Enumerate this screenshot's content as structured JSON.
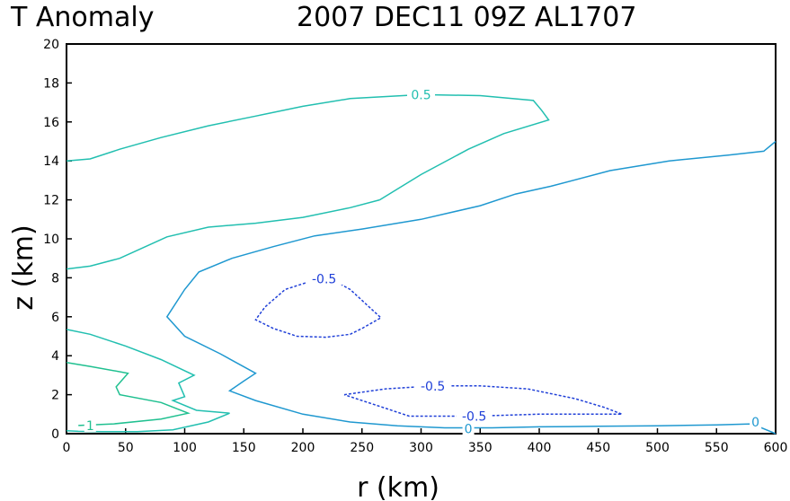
{
  "chart_data": {
    "type": "contour",
    "title_left": "T Anomaly",
    "title_right": "2007 DEC11 09Z  AL1707",
    "xlabel": "r (km)",
    "ylabel": "z (km)",
    "xlim": [
      0,
      600
    ],
    "ylim": [
      0,
      20
    ],
    "x_ticks": [
      "0",
      "50",
      "100",
      "150",
      "200",
      "250",
      "300",
      "350",
      "400",
      "450",
      "500",
      "550",
      "600"
    ],
    "y_ticks": [
      "0",
      "2",
      "4",
      "6",
      "8",
      "10",
      "12",
      "14",
      "16",
      "18",
      "20"
    ],
    "grid": false,
    "legend": "none",
    "colors": {
      "pos_05": "#22bfb0",
      "zero": "#1f98d0",
      "neg_05": "#2040d8",
      "pos_1": "#20c090"
    },
    "contours": [
      {
        "level": "0.5",
        "color_key": "pos_05",
        "dashed": false,
        "points": [
          [
            0,
            14
          ],
          [
            20,
            14.1
          ],
          [
            45,
            14.6
          ],
          [
            80,
            15.2
          ],
          [
            120,
            15.8
          ],
          [
            160,
            16.3
          ],
          [
            200,
            16.8
          ],
          [
            240,
            17.2
          ],
          [
            300,
            17.4
          ],
          [
            350,
            17.35
          ],
          [
            395,
            17.1
          ],
          [
            402,
            16.6
          ],
          [
            408,
            16.1
          ],
          [
            370,
            15.4
          ],
          [
            340,
            14.6
          ],
          [
            300,
            13.3
          ],
          [
            265,
            12
          ]
        ],
        "label": {
          "text": "0.5",
          "x": 300,
          "y": 17.4
        }
      },
      {
        "level": "0.5",
        "color_key": "pos_05",
        "dashed": false,
        "points": [
          [
            265,
            12
          ],
          [
            240,
            11.6
          ],
          [
            200,
            11.1
          ],
          [
            160,
            10.8
          ],
          [
            120,
            10.6
          ],
          [
            85,
            10.1
          ],
          [
            45,
            9
          ],
          [
            20,
            8.6
          ],
          [
            0,
            8.45
          ]
        ],
        "label": null
      },
      {
        "level": "0",
        "color_key": "zero",
        "dashed": false,
        "points": [
          [
            600,
            15
          ],
          [
            590,
            14.5
          ],
          [
            560,
            14.3
          ],
          [
            510,
            14
          ],
          [
            460,
            13.5
          ],
          [
            410,
            12.7
          ],
          [
            380,
            12.3
          ],
          [
            350,
            11.7
          ],
          [
            300,
            11
          ],
          [
            250,
            10.5
          ],
          [
            210,
            10.15
          ],
          [
            175,
            9.6
          ],
          [
            140,
            9
          ],
          [
            112,
            8.3
          ],
          [
            100,
            7.4
          ],
          [
            85,
            6
          ],
          [
            100,
            5
          ],
          [
            130,
            4.1
          ],
          [
            160,
            3.1
          ],
          [
            150,
            2.7
          ],
          [
            138,
            2.2
          ],
          [
            160,
            1.7
          ],
          [
            200,
            1
          ],
          [
            240,
            0.6
          ],
          [
            280,
            0.4
          ],
          [
            320,
            0.3
          ],
          [
            360,
            0.3
          ],
          [
            400,
            0.35
          ],
          [
            450,
            0.38
          ],
          [
            500,
            0.4
          ],
          [
            550,
            0.45
          ],
          [
            580,
            0.5
          ],
          [
            600,
            0
          ]
        ],
        "label": {
          "text": "0",
          "x": 340,
          "y": 0.25
        }
      },
      {
        "level": "0",
        "color_key": "zero",
        "dashed": false,
        "points": [
          [
            580,
            0.5
          ],
          [
            585,
            0.6
          ]
        ],
        "label": {
          "text": "0",
          "x": 583,
          "y": 0.6
        }
      },
      {
        "level": "0.5",
        "color_key": "pos_05",
        "dashed": false,
        "points": [
          [
            0,
            5.35
          ],
          [
            20,
            5.1
          ],
          [
            50,
            4.5
          ],
          [
            80,
            3.8
          ],
          [
            108,
            3
          ],
          [
            95,
            2.6
          ],
          [
            100,
            1.9
          ],
          [
            90,
            1.7
          ],
          [
            110,
            1.2
          ],
          [
            138,
            1.05
          ],
          [
            120,
            0.6
          ],
          [
            90,
            0.2
          ],
          [
            60,
            0.1
          ],
          [
            30,
            0.1
          ],
          [
            10,
            0.12
          ],
          [
            0,
            0.15
          ]
        ],
        "label": null
      },
      {
        "level": "1",
        "color_key": "pos_1",
        "dashed": false,
        "points": [
          [
            0,
            3.65
          ],
          [
            20,
            3.45
          ],
          [
            52,
            3.1
          ],
          [
            42,
            2.4
          ],
          [
            45,
            2
          ],
          [
            80,
            1.6
          ],
          [
            103,
            1.05
          ],
          [
            80,
            0.75
          ],
          [
            40,
            0.5
          ],
          [
            10,
            0.42
          ]
        ],
        "label": {
          "text": "1",
          "x": 20,
          "y": 0.42
        }
      },
      {
        "level": "-0.5",
        "color_key": "neg_05",
        "dashed": true,
        "points": [
          [
            213,
            7.95
          ],
          [
            185,
            7.4
          ],
          [
            168,
            6.5
          ],
          [
            160,
            5.85
          ],
          [
            175,
            5.4
          ],
          [
            195,
            5
          ],
          [
            220,
            4.95
          ],
          [
            240,
            5.1
          ],
          [
            250,
            5.4
          ],
          [
            266,
            5.95
          ],
          [
            240,
            7.4
          ],
          [
            225,
            7.9
          ],
          [
            213,
            7.95
          ]
        ],
        "label": {
          "text": "-0.5",
          "x": 218,
          "y": 7.95
        }
      },
      {
        "level": "-0.5",
        "color_key": "neg_05",
        "dashed": true,
        "points": [
          [
            235,
            2
          ],
          [
            270,
            2.3
          ],
          [
            310,
            2.45
          ],
          [
            350,
            2.45
          ],
          [
            390,
            2.3
          ],
          [
            430,
            1.8
          ],
          [
            455,
            1.35
          ],
          [
            470,
            1
          ],
          [
            400,
            1
          ],
          [
            345,
            0.9
          ],
          [
            290,
            0.9
          ],
          [
            260,
            1.5
          ],
          [
            235,
            2
          ]
        ],
        "label": {
          "text": "-0.5",
          "x": 310,
          "y": 2.45
        }
      },
      {
        "level": "-0.5",
        "color_key": "neg_05",
        "dashed": true,
        "points": [
          [
            345,
            0.9
          ],
          [
            345,
            0.9
          ]
        ],
        "label": {
          "text": "-0.5",
          "x": 345,
          "y": 0.9
        }
      }
    ]
  }
}
